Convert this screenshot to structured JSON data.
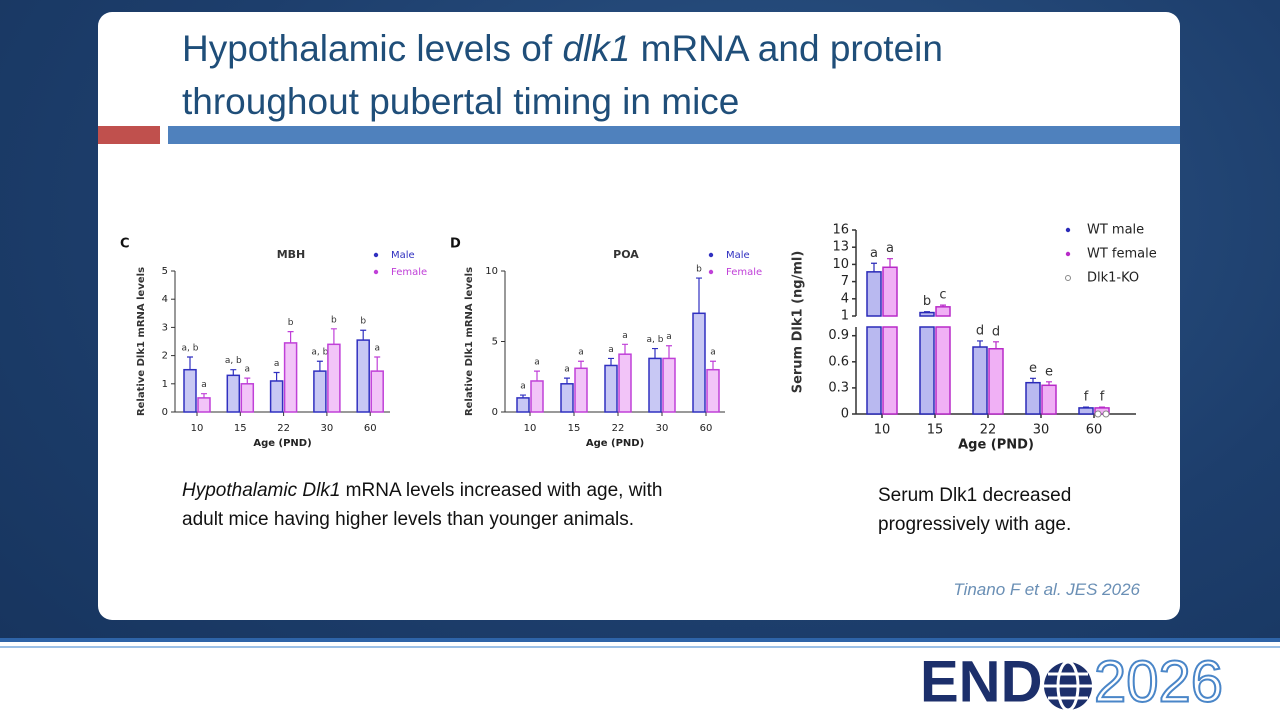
{
  "title": [
    [
      "Hypothalamic levels of ",
      "dlk1",
      " mRNA and protein"
    ],
    [
      "throughout pubertal timing in mice"
    ]
  ],
  "caption_left": [
    [
      "Hypothalamic Dlk1",
      " mRNA levels increased with age, with"
    ],
    [
      "adult mice having higher levels than younger animals."
    ]
  ],
  "caption_right": [
    "Serum Dlk1 decreased",
    "progressively with age."
  ],
  "citation": "Tinano F et al. JES 2026",
  "logo": [
    "END",
    "2026"
  ],
  "chart_data": [
    {
      "type": "bar",
      "panel": "C",
      "title": "MBH",
      "y_label": "Relative Dlk1 mRNA levels",
      "x_label": "Age (PND)",
      "categories": [
        "10",
        "15",
        "22",
        "30",
        "60"
      ],
      "ylim": [
        0,
        5
      ],
      "yticks": [
        0,
        1,
        2,
        3,
        4,
        5
      ],
      "series": [
        {
          "name": "Male",
          "color": "#3030c0",
          "fill": "#c8c8f4",
          "values": [
            1.5,
            1.3,
            1.1,
            1.45,
            2.55
          ],
          "errors": [
            0.45,
            0.2,
            0.3,
            0.35,
            0.35
          ],
          "letters": [
            "a, b",
            "a, b",
            "a",
            "a, b",
            "b"
          ]
        },
        {
          "name": "Female",
          "color": "#c040d8",
          "fill": "#f2c4f8",
          "values": [
            0.5,
            1.0,
            2.45,
            2.4,
            1.45
          ],
          "errors": [
            0.15,
            0.2,
            0.4,
            0.55,
            0.5
          ],
          "letters": [
            "a",
            "a",
            "b",
            "b",
            "a"
          ]
        }
      ]
    },
    {
      "type": "bar",
      "panel": "D",
      "title": "POA",
      "y_label": "Relative Dlk1 mRNA levels",
      "x_label": "Age (PND)",
      "categories": [
        "10",
        "15",
        "22",
        "30",
        "60"
      ],
      "ylim": [
        0,
        10
      ],
      "yticks": [
        0,
        5,
        10
      ],
      "series": [
        {
          "name": "Male",
          "color": "#3030c0",
          "fill": "#c8c8f4",
          "values": [
            1.0,
            2.0,
            3.3,
            3.8,
            7.0
          ],
          "errors": [
            0.2,
            0.4,
            0.5,
            0.7,
            2.5
          ],
          "letters": [
            "a",
            "a",
            "a",
            "a, b",
            "b"
          ]
        },
        {
          "name": "Female",
          "color": "#c040d8",
          "fill": "#f2c4f8",
          "values": [
            2.2,
            3.1,
            4.1,
            3.8,
            3.0
          ],
          "errors": [
            0.7,
            0.5,
            0.7,
            0.9,
            0.6
          ],
          "letters": [
            "a",
            "a",
            "a",
            "a",
            "a"
          ]
        }
      ]
    },
    {
      "type": "broken-bar",
      "y_label": "Serum Dlk1 (ng/ml)",
      "x_label": "Age (PND)",
      "categories": [
        "10",
        "15",
        "22",
        "30",
        "60"
      ],
      "y_segments": [
        {
          "ylim": [
            0,
            1
          ],
          "yticks": [
            0,
            0.3,
            0.6,
            0.9
          ]
        },
        {
          "ylim": [
            1,
            16
          ],
          "yticks": [
            1,
            4,
            7,
            10,
            13,
            16
          ]
        }
      ],
      "series": [
        {
          "name": "WT male",
          "color": "#2a2ab8",
          "fill": "#b9b9f0",
          "values": [
            8.7,
            1.6,
            0.77,
            0.36,
            0.07
          ],
          "errors": [
            1.5,
            0.15,
            0.07,
            0.05,
            0.01
          ],
          "letters": [
            "a",
            "b",
            "d",
            "e",
            "f"
          ]
        },
        {
          "name": "WT female",
          "color": "#b82ac8",
          "fill": "#f0b0f5",
          "values": [
            9.5,
            2.6,
            0.75,
            0.33,
            0.07
          ],
          "errors": [
            1.5,
            0.3,
            0.08,
            0.04,
            0.01
          ],
          "letters": [
            "a",
            "c",
            "d",
            "e",
            "f"
          ]
        },
        {
          "name": "Dlk1-KO",
          "color": "#888888",
          "values": [
            null,
            null,
            null,
            null,
            0
          ]
        }
      ]
    }
  ]
}
